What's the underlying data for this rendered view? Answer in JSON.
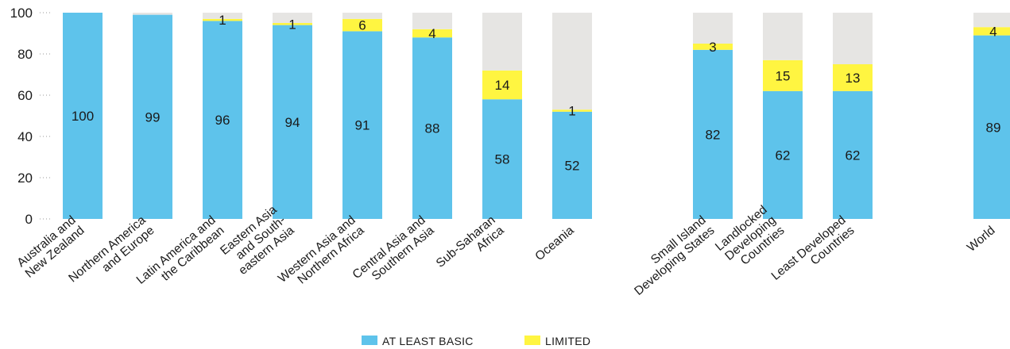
{
  "chart_data": {
    "type": "bar",
    "stacked": true,
    "categories": [
      [
        "Australia and",
        "New Zealand"
      ],
      [
        "Northern America",
        "and Europe"
      ],
      [
        "Latin America and",
        "the Caribbean"
      ],
      [
        "Eastern Asia",
        "and South-",
        "eastern Asia"
      ],
      [
        "Western Asia and",
        "Northern Africa"
      ],
      [
        "Central Asia and",
        "Southern Asia"
      ],
      [
        "Sub-Saharan",
        "Africa"
      ],
      [
        "Oceania"
      ],
      [
        "Small Island",
        "Developing States"
      ],
      [
        "Landlocked",
        "Developing",
        "Countries"
      ],
      [
        "Least Developed",
        "Countries"
      ],
      [
        "World"
      ]
    ],
    "series": [
      {
        "name": "AT LEAST BASIC",
        "color": "#5ec3eb",
        "values": [
          100,
          99,
          96,
          94,
          91,
          88,
          58,
          52,
          82,
          62,
          62,
          89
        ]
      },
      {
        "name": "LIMITED",
        "color": "#fff541",
        "values": [
          null,
          null,
          1,
          1,
          6,
          4,
          14,
          1,
          3,
          15,
          13,
          4
        ]
      },
      {
        "name": "",
        "color": "#e6e5e3",
        "values": [
          0,
          1,
          3,
          5,
          3,
          8,
          28,
          47,
          15,
          23,
          25,
          7
        ]
      }
    ],
    "ylim": [
      0,
      100
    ],
    "yticks": [
      0,
      20,
      40,
      60,
      80,
      100
    ],
    "grid": false,
    "legend_position": "bottom-center",
    "xlabel": "",
    "ylabel": ""
  }
}
